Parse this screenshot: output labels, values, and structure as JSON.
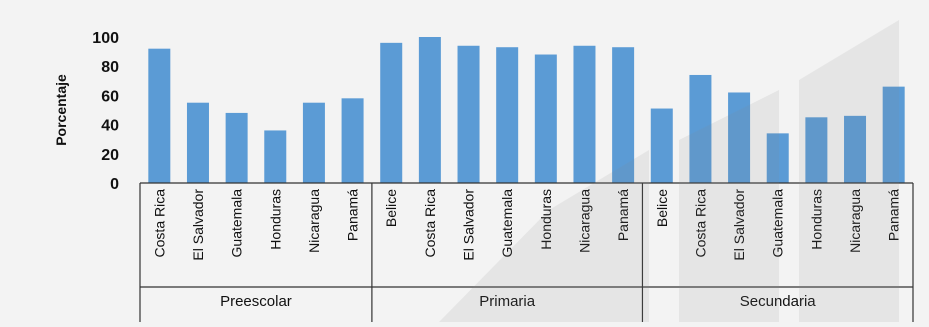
{
  "chart_data": {
    "type": "bar",
    "ylabel": "Porcentaje",
    "ylim": [
      0,
      100
    ],
    "yticks": [
      0,
      20,
      40,
      60,
      80,
      100
    ],
    "grid": false,
    "bar_color": "#5b9bd5",
    "groups": [
      {
        "name": "Preescolar",
        "categories": [
          "Costa Rica",
          "El Salvador",
          "Guatemala",
          "Honduras",
          "Nicaragua",
          "Panamá"
        ],
        "values": [
          92,
          55,
          48,
          36,
          55,
          58
        ]
      },
      {
        "name": "Primaria",
        "categories": [
          "Belice",
          "Costa Rica",
          "El Salvador",
          "Guatemala",
          "Honduras",
          "Nicaragua",
          "Panamá"
        ],
        "values": [
          96,
          100,
          94,
          93,
          88,
          94,
          93
        ]
      },
      {
        "name": "Secundaria",
        "categories": [
          "Belice",
          "Costa Rica",
          "El Salvador",
          "Guatemala",
          "Honduras",
          "Nicaragua",
          "Panamá"
        ],
        "values": [
          51,
          74,
          62,
          34,
          45,
          46,
          66
        ]
      }
    ]
  }
}
